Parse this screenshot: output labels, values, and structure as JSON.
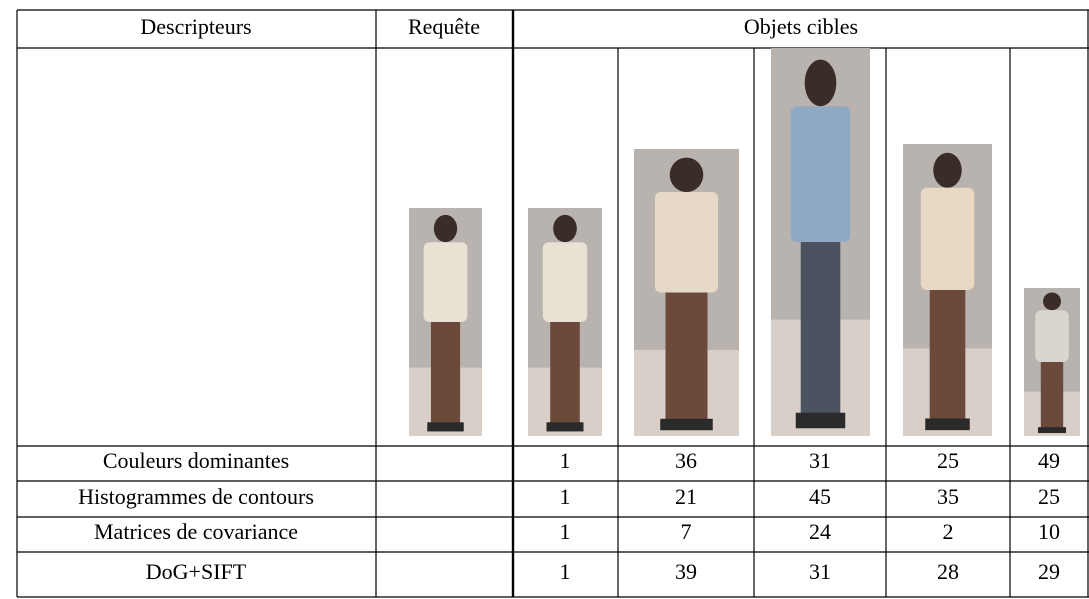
{
  "table": {
    "header": [
      "Descripteurs",
      "Requête",
      "Objets cibles"
    ],
    "rows": [
      {
        "label": "Couleurs dominantes",
        "values": [
          1,
          36,
          31,
          25,
          49
        ]
      },
      {
        "label": "Histogrammes de contours",
        "values": [
          1,
          21,
          45,
          35,
          25
        ]
      },
      {
        "label": "Matrices de covariance",
        "values": [
          1,
          7,
          24,
          2,
          10
        ]
      },
      {
        "label": "DoG+SIFT",
        "values": [
          1,
          39,
          31,
          28,
          29
        ]
      }
    ]
  }
}
